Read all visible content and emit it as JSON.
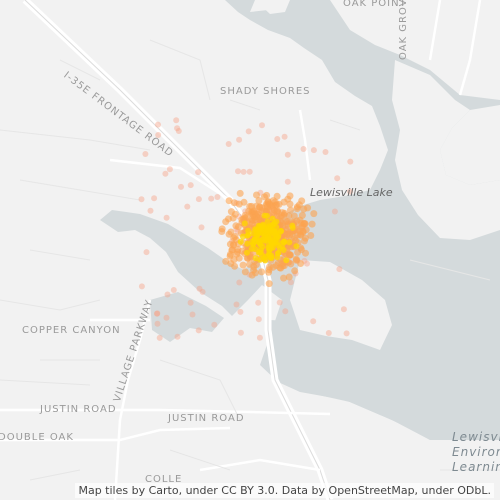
{
  "map": {
    "labels": {
      "oak_point": "OAK POINT",
      "oak_grove": "OAK GROVE PARKWAY",
      "frontage": "I-35E FRONTAGE ROAD",
      "shady_shores": "SHADY SHORES",
      "lewisville_lake": "Lewisville Lake",
      "copper_canyon": "COPPER CANYON",
      "village_parkway": "VILLAGE PARKWAY",
      "justin_road_w": "JUSTIN ROAD",
      "justin_road_e": "JUSTIN ROAD",
      "double_oak": "DOUBLE OAK",
      "college": "COLLE",
      "env_1": "Lewisville",
      "env_2": "Environ",
      "env_3": "Learning"
    },
    "colors": {
      "background": "#f2f2f2",
      "water": "#d4dadc",
      "road": "#ffffff",
      "minor_road": "#e4e4e4",
      "hotspot_low": "#f7a389",
      "hotspot_mid": "#fca350",
      "hotspot_high": "#ffd700"
    }
  },
  "attribution": "Map tiles by Carto, under CC BY 3.0. Data by OpenStreetMap, under ODbL."
}
